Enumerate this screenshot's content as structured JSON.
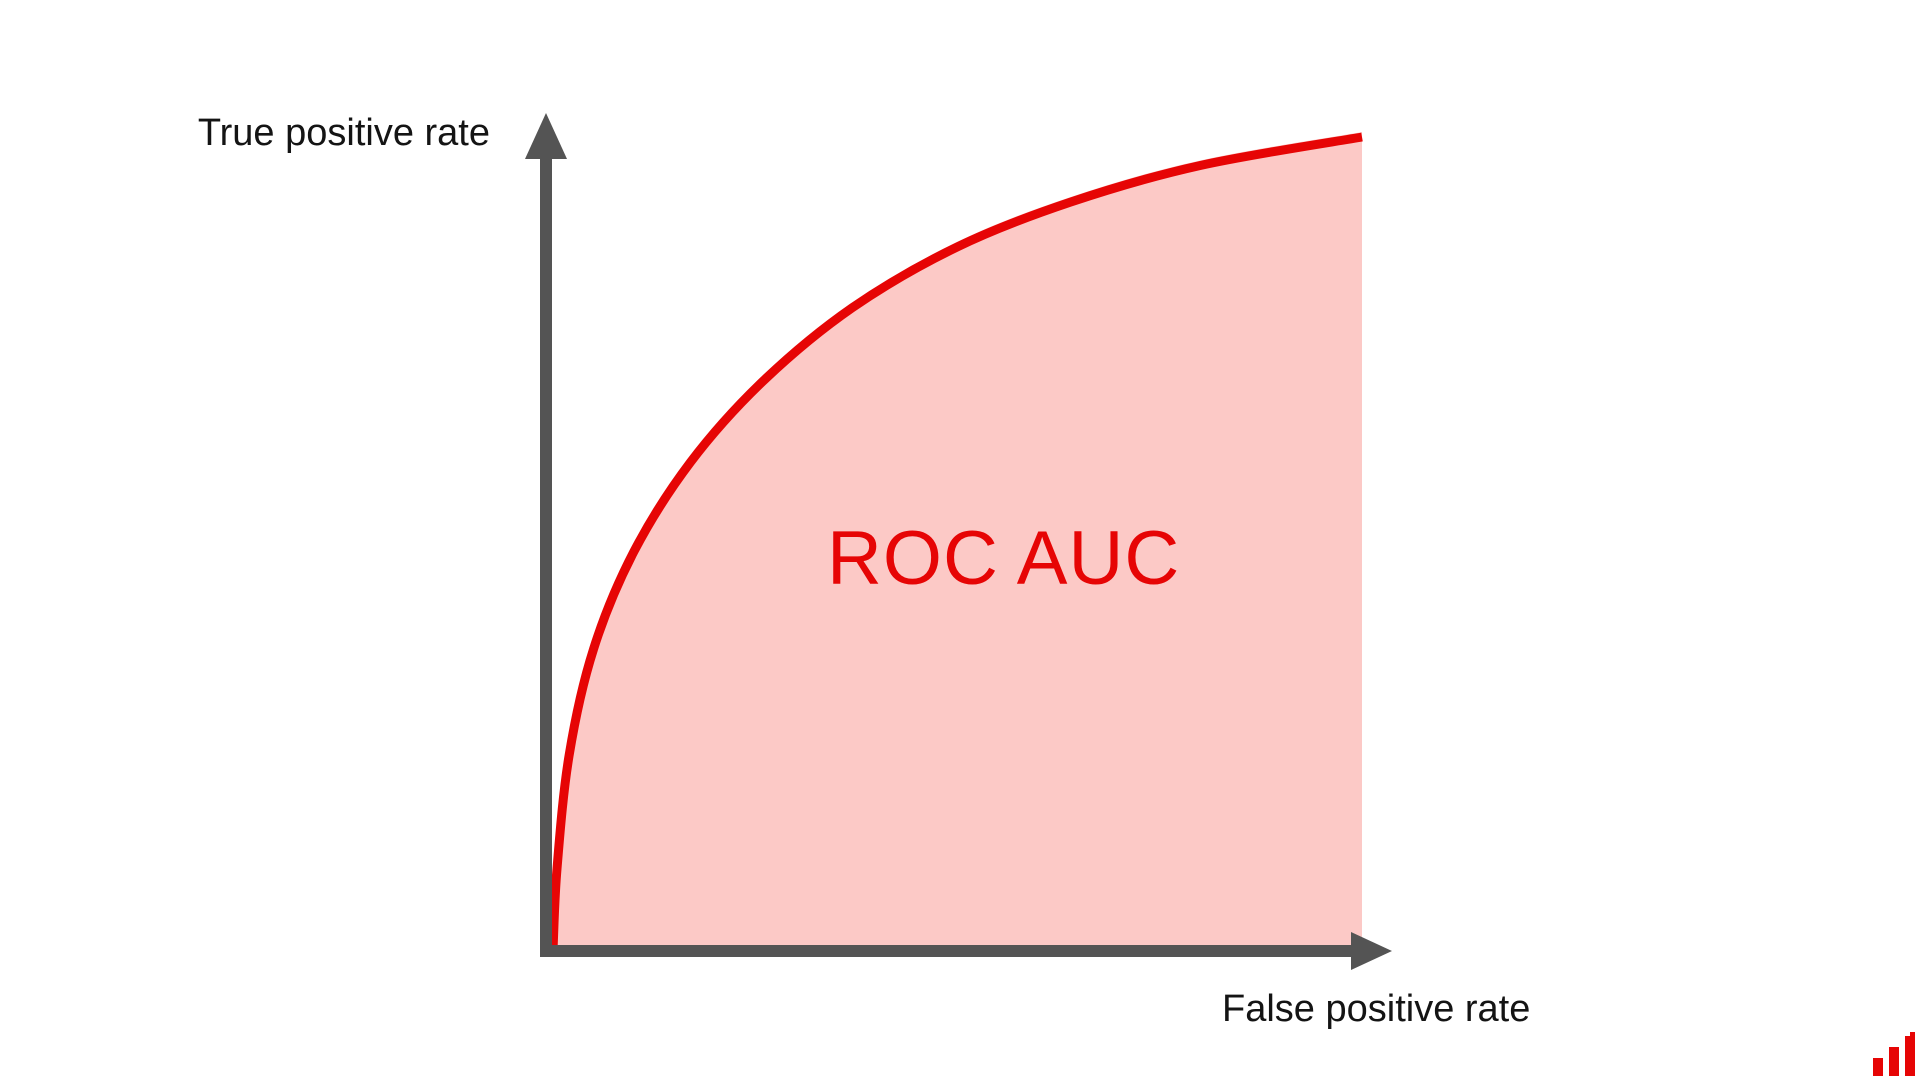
{
  "chart": {
    "y_axis_label": "True positive rate",
    "x_axis_label": "False positive rate",
    "area_label": "ROC AUC",
    "colors": {
      "curve": "#e60505",
      "area_fill": "#fcc9c6",
      "axis": "#545454",
      "label_text": "#141414",
      "area_label_text": "#e60505",
      "logo": "#e60505",
      "background": "#ffffff"
    }
  },
  "logo": {
    "icon": "bar-chart-logo"
  },
  "chart_data": {
    "type": "area",
    "title": "",
    "xlabel": "False positive rate",
    "ylabel": "True positive rate",
    "xlim": [
      0,
      1
    ],
    "ylim": [
      0,
      1
    ],
    "grid": false,
    "axis_ticks": false,
    "legend": false,
    "annotation": "ROC AUC",
    "series": [
      {
        "name": "ROC curve",
        "fill": true,
        "x": [
          0,
          0.005,
          0.02,
          0.05,
          0.1,
          0.17,
          0.26,
          0.37,
          0.5,
          0.64,
          0.8,
          1.0
        ],
        "y": [
          0,
          0.1,
          0.24,
          0.37,
          0.49,
          0.6,
          0.7,
          0.79,
          0.865,
          0.92,
          0.965,
          1.0
        ]
      }
    ]
  }
}
